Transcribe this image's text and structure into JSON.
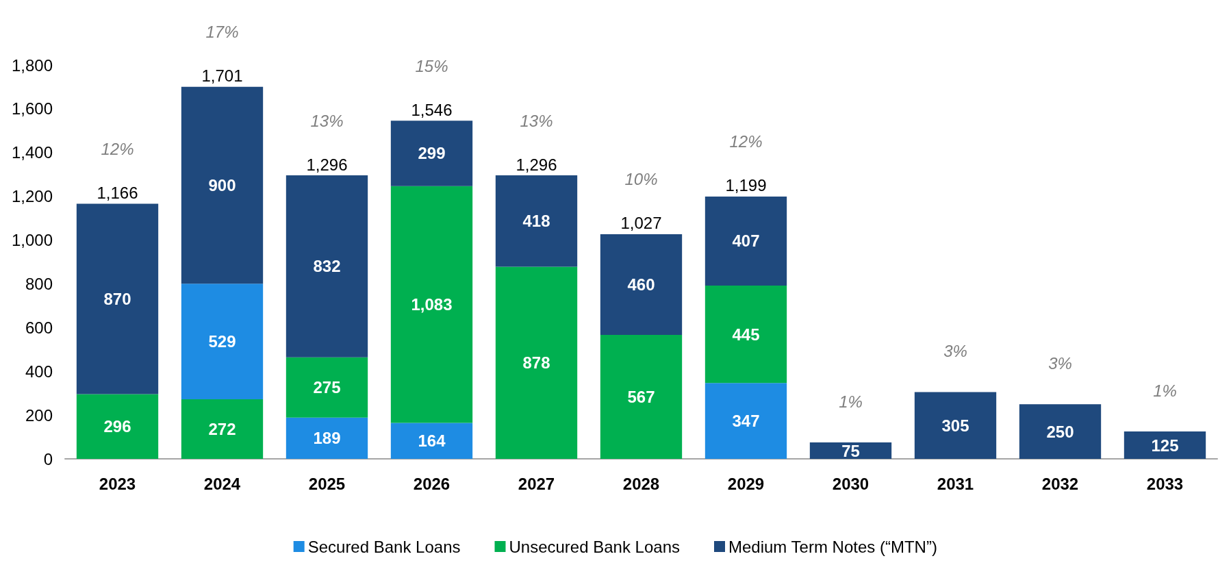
{
  "chart_data": {
    "type": "bar",
    "categories": [
      "2023",
      "2024",
      "2025",
      "2026",
      "2027",
      "2028",
      "2029",
      "2030",
      "2031",
      "2032",
      "2033"
    ],
    "series": [
      {
        "name": "Secured Bank Loans",
        "color": "#1e8ce3",
        "values": [
          null,
          529,
          189,
          164,
          null,
          null,
          347,
          null,
          null,
          null,
          null
        ],
        "base": [
          null,
          272,
          0,
          0,
          null,
          null,
          0,
          null,
          null,
          null,
          null
        ],
        "value_labels": [
          null,
          "529",
          "189",
          "164",
          null,
          null,
          "347",
          null,
          null,
          null,
          null
        ]
      },
      {
        "name": "Unsecured Bank Loans",
        "color": "#00b050",
        "values": [
          296,
          272,
          275,
          1083,
          878,
          567,
          445,
          null,
          null,
          null,
          null
        ],
        "base": [
          0,
          0,
          189,
          164,
          0,
          0,
          347,
          null,
          null,
          null,
          null
        ],
        "value_labels": [
          "296",
          "272",
          "275",
          "1,083",
          "878",
          "567",
          "445",
          null,
          null,
          null,
          null
        ]
      },
      {
        "name": "Medium Term Notes (“MTN”)",
        "color": "#1f497d",
        "values": [
          870,
          900,
          832,
          299,
          418,
          460,
          407,
          75,
          305,
          250,
          125
        ],
        "base": [
          296,
          801,
          464,
          1247,
          878,
          567,
          792,
          0,
          0,
          0,
          0
        ],
        "value_labels": [
          "870",
          "900",
          "832",
          "299",
          "418",
          "460",
          "407",
          "75",
          "305",
          "250",
          "125"
        ]
      }
    ],
    "totals": [
      "1,166",
      "1,701",
      "1,296",
      "1,546",
      "1,296",
      "1,027",
      "1,199",
      null,
      null,
      null,
      null
    ],
    "annotations": [
      "12%",
      "17%",
      "13%",
      "15%",
      "13%",
      "10%",
      "12%",
      "1%",
      "3%",
      "3%",
      "1%"
    ],
    "ylim": [
      0,
      1800
    ],
    "yticks": [
      0,
      200,
      400,
      600,
      800,
      {
        "value": 1000,
        "label": "1,000"
      },
      {
        "value": 1200,
        "label": "1,200"
      },
      {
        "value": 1400,
        "label": "1,400"
      },
      {
        "value": 1600,
        "label": "1,600"
      },
      {
        "value": 1800,
        "label": "1,800"
      }
    ],
    "grid": false,
    "legend": "bottom"
  }
}
